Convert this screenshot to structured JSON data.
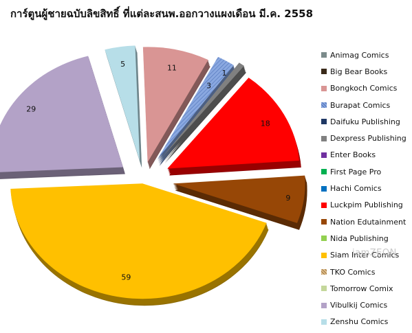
{
  "chart_data": {
    "type": "pie",
    "title": "การ์ตูนผู้ชายฉบับลิขสิทธิ์ ที่แต่ละสนพ.ออกวางแผงเดือน มี.ค. 2558",
    "legend_position": "right",
    "slices": [
      {
        "name": "Animag Comics",
        "value": 0,
        "color": "#7b8b8b"
      },
      {
        "name": "Big Bear Books",
        "value": 0,
        "color": "#3a2a1a"
      },
      {
        "name": "Bongkoch Comics",
        "value": 11,
        "color": "#d99594"
      },
      {
        "name": "Burapat Comics",
        "value": 3,
        "color": "#7f9fd8"
      },
      {
        "name": "Daifuku Publishing",
        "value": 0,
        "color": "#1f3864"
      },
      {
        "name": "Dexpress Publishing",
        "value": 1,
        "color": "#808080"
      },
      {
        "name": "Enter Books",
        "value": 0,
        "color": "#7030a0"
      },
      {
        "name": "First Page Pro",
        "value": 0,
        "color": "#00b050"
      },
      {
        "name": "Hachi Comics",
        "value": 0,
        "color": "#0070c0"
      },
      {
        "name": "Luckpim Publishing",
        "value": 18,
        "color": "#ff0000"
      },
      {
        "name": "Nation Edutainment",
        "value": 9,
        "color": "#974706"
      },
      {
        "name": "Nida Publishing",
        "value": 0,
        "color": "#92d050"
      },
      {
        "name": "Siam Inter Comics",
        "value": 59,
        "color": "#ffc000"
      },
      {
        "name": "TKO Comics",
        "value": 0,
        "color": "#c9a060"
      },
      {
        "name": "Tomorrow Comix",
        "value": 0,
        "color": "#c4d79b"
      },
      {
        "name": "Vibulkij Comics",
        "value": 29,
        "color": "#b3a2c7"
      },
      {
        "name": "Zenshu Comics",
        "value": 5,
        "color": "#b7dee8"
      }
    ]
  },
  "watermark": "iamZEON"
}
